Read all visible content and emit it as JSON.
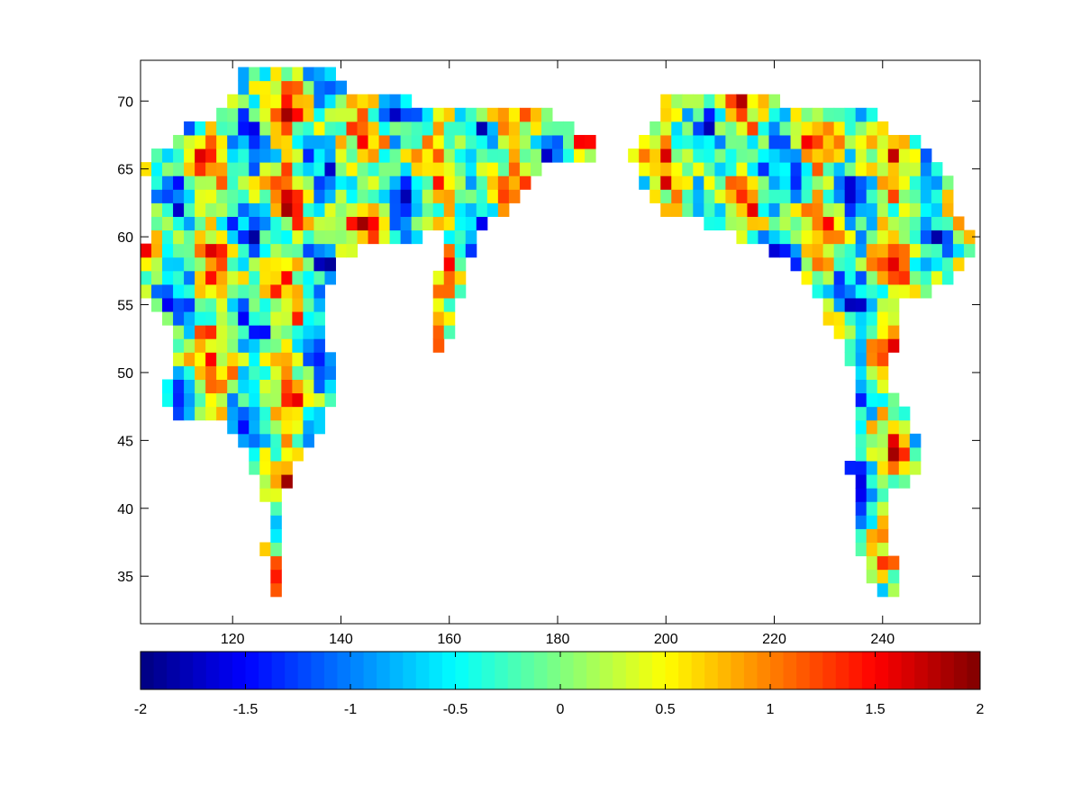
{
  "chart_data": {
    "type": "heatmap",
    "title": "",
    "xlabel": "",
    "ylabel": "",
    "xlim": [
      103,
      258
    ],
    "ylim": [
      31.5,
      73
    ],
    "xticks": [
      120,
      140,
      160,
      180,
      200,
      220,
      240
    ],
    "xtick_labels": [
      "120",
      "140",
      "160",
      "180",
      "200",
      "220",
      "240"
    ],
    "yticks": [
      35,
      40,
      45,
      50,
      55,
      60,
      65,
      70
    ],
    "ytick_labels": [
      "35",
      "40",
      "45",
      "50",
      "55",
      "60",
      "65",
      "70"
    ],
    "colormap": "jet",
    "color_range": [
      -2,
      2
    ],
    "colorbar": {
      "orientation": "horizontal",
      "placement": "bottom",
      "ticks": [
        -2,
        -1.5,
        -1,
        -0.5,
        0,
        0.5,
        1,
        1.5,
        2
      ],
      "tick_labels": [
        "-2",
        "-1.5",
        "-1",
        "-0.5",
        "0",
        "0.5",
        "1",
        "1.5",
        "2"
      ]
    },
    "grid": false,
    "cell_size": [
      2,
      1
    ],
    "regions": [
      {
        "name": "",
        "points": [
          [
            105,
            66
          ],
          [
            107,
            67
          ],
          [
            110,
            67
          ],
          [
            112,
            68
          ],
          [
            115,
            69
          ],
          [
            118,
            69
          ],
          [
            120,
            70
          ],
          [
            122,
            72
          ],
          [
            126,
            73
          ],
          [
            130,
            73
          ],
          [
            134,
            72
          ],
          [
            138,
            73
          ],
          [
            142,
            71
          ],
          [
            146,
            71
          ],
          [
            150,
            71
          ],
          [
            154,
            70
          ],
          [
            158,
            70
          ],
          [
            162,
            70
          ],
          [
            166,
            70
          ],
          [
            170,
            70
          ],
          [
            174,
            70
          ],
          [
            178,
            69.5
          ],
          [
            182,
            68.5
          ],
          [
            186,
            67.5
          ],
          [
            189,
            66.5
          ],
          [
            186,
            65.5
          ],
          [
            182,
            65.5
          ],
          [
            178,
            65
          ],
          [
            175,
            64
          ],
          [
            172,
            62.5
          ],
          [
            168,
            61
          ],
          [
            165,
            59.5
          ],
          [
            163,
            57
          ],
          [
            162,
            55
          ],
          [
            161,
            53.5
          ],
          [
            160,
            52
          ],
          [
            158,
            51
          ],
          [
            157,
            54
          ],
          [
            158,
            57
          ],
          [
            160,
            59.5
          ],
          [
            159,
            60.5
          ],
          [
            155,
            60
          ],
          [
            151,
            60
          ],
          [
            147,
            60
          ],
          [
            145,
            60
          ],
          [
            143,
            59
          ],
          [
            140,
            58
          ],
          [
            138,
            56
          ],
          [
            137,
            54
          ],
          [
            138,
            52
          ],
          [
            139,
            50
          ],
          [
            139,
            48
          ],
          [
            137,
            46
          ],
          [
            134,
            44
          ],
          [
            132,
            43
          ],
          [
            130,
            41
          ],
          [
            129,
            38
          ],
          [
            129,
            35
          ],
          [
            130,
            33
          ],
          [
            131,
            32
          ],
          [
            129,
            33
          ],
          [
            127,
            35
          ],
          [
            126,
            37
          ],
          [
            127,
            40
          ],
          [
            125,
            42
          ],
          [
            123,
            44
          ],
          [
            120,
            45.5
          ],
          [
            117,
            46.5
          ],
          [
            113,
            46.5
          ],
          [
            109,
            47
          ],
          [
            107,
            49
          ],
          [
            109,
            50.5
          ],
          [
            110,
            52
          ],
          [
            108,
            53.5
          ],
          [
            106,
            55
          ],
          [
            104,
            56
          ],
          [
            104,
            59
          ],
          [
            106,
            61
          ],
          [
            105,
            63
          ],
          [
            104,
            65
          ]
        ]
      },
      {
        "name": "",
        "points": [
          [
            194,
            66
          ],
          [
            196,
            67.5
          ],
          [
            198,
            68.5
          ],
          [
            200,
            70
          ],
          [
            203,
            71
          ],
          [
            206,
            70.5
          ],
          [
            209,
            71
          ],
          [
            212,
            70.5
          ],
          [
            215,
            71
          ],
          [
            218,
            70.5
          ],
          [
            221,
            70
          ],
          [
            224,
            70
          ],
          [
            227,
            70
          ],
          [
            230,
            70
          ],
          [
            233,
            70
          ],
          [
            236,
            69.5
          ],
          [
            239,
            69
          ],
          [
            242,
            68
          ],
          [
            245,
            67.5
          ],
          [
            248,
            66.5
          ],
          [
            251,
            65
          ],
          [
            253,
            63.5
          ],
          [
            254,
            62
          ],
          [
            256,
            61
          ],
          [
            257,
            59
          ],
          [
            255,
            57.5
          ],
          [
            252,
            56.5
          ],
          [
            250,
            56
          ],
          [
            247,
            55.5
          ],
          [
            244,
            55
          ],
          [
            243,
            53
          ],
          [
            242,
            51
          ],
          [
            242,
            49
          ],
          [
            244,
            47.5
          ],
          [
            246,
            46
          ],
          [
            247,
            44
          ],
          [
            246,
            42.5
          ],
          [
            243,
            41.5
          ],
          [
            241,
            41
          ],
          [
            240,
            38.5
          ],
          [
            242,
            36.5
          ],
          [
            243,
            34
          ],
          [
            242,
            33
          ],
          [
            240,
            33.5
          ],
          [
            238,
            35
          ],
          [
            236,
            37
          ],
          [
            235,
            40
          ],
          [
            234,
            43
          ],
          [
            235,
            46
          ],
          [
            236,
            48
          ],
          [
            235,
            50
          ],
          [
            233,
            52
          ],
          [
            230,
            54
          ],
          [
            228,
            55.5
          ],
          [
            226,
            57
          ],
          [
            223,
            58.5
          ],
          [
            220,
            59
          ],
          [
            217,
            59.5
          ],
          [
            214,
            60
          ],
          [
            211,
            60.5
          ],
          [
            208,
            61
          ],
          [
            205,
            61.5
          ],
          [
            202,
            61.5
          ],
          [
            199,
            62
          ],
          [
            197,
            63
          ],
          [
            195,
            64.5
          ]
        ]
      },
      {
        "name": "",
        "points": [
          [
            105.5,
            66
          ],
          [
            107,
            66.5
          ],
          [
            108.5,
            67
          ],
          [
            109.5,
            67.5
          ],
          [
            110.5,
            68
          ],
          [
            111,
            68.5
          ],
          [
            112,
            69
          ],
          [
            113,
            70
          ],
          [
            114,
            70.5
          ],
          [
            115,
            71
          ],
          [
            116,
            71.5
          ],
          [
            118,
            72.5
          ],
          [
            120,
            73
          ],
          [
            121,
            72.5
          ],
          [
            123,
            72
          ],
          [
            125,
            71.5
          ],
          [
            126.5,
            72
          ],
          [
            128,
            72.5
          ],
          [
            129,
            71.5
          ],
          [
            130.5,
            70.5
          ],
          [
            131.5,
            71
          ],
          [
            133,
            71.5
          ],
          [
            134.5,
            71
          ],
          [
            136,
            70.5
          ],
          [
            137.5,
            70.5
          ],
          [
            138.5,
            71
          ],
          [
            140,
            71
          ],
          [
            141.5,
            70.5
          ],
          [
            143,
            70
          ],
          [
            144,
            69.5
          ]
        ]
      }
    ]
  }
}
